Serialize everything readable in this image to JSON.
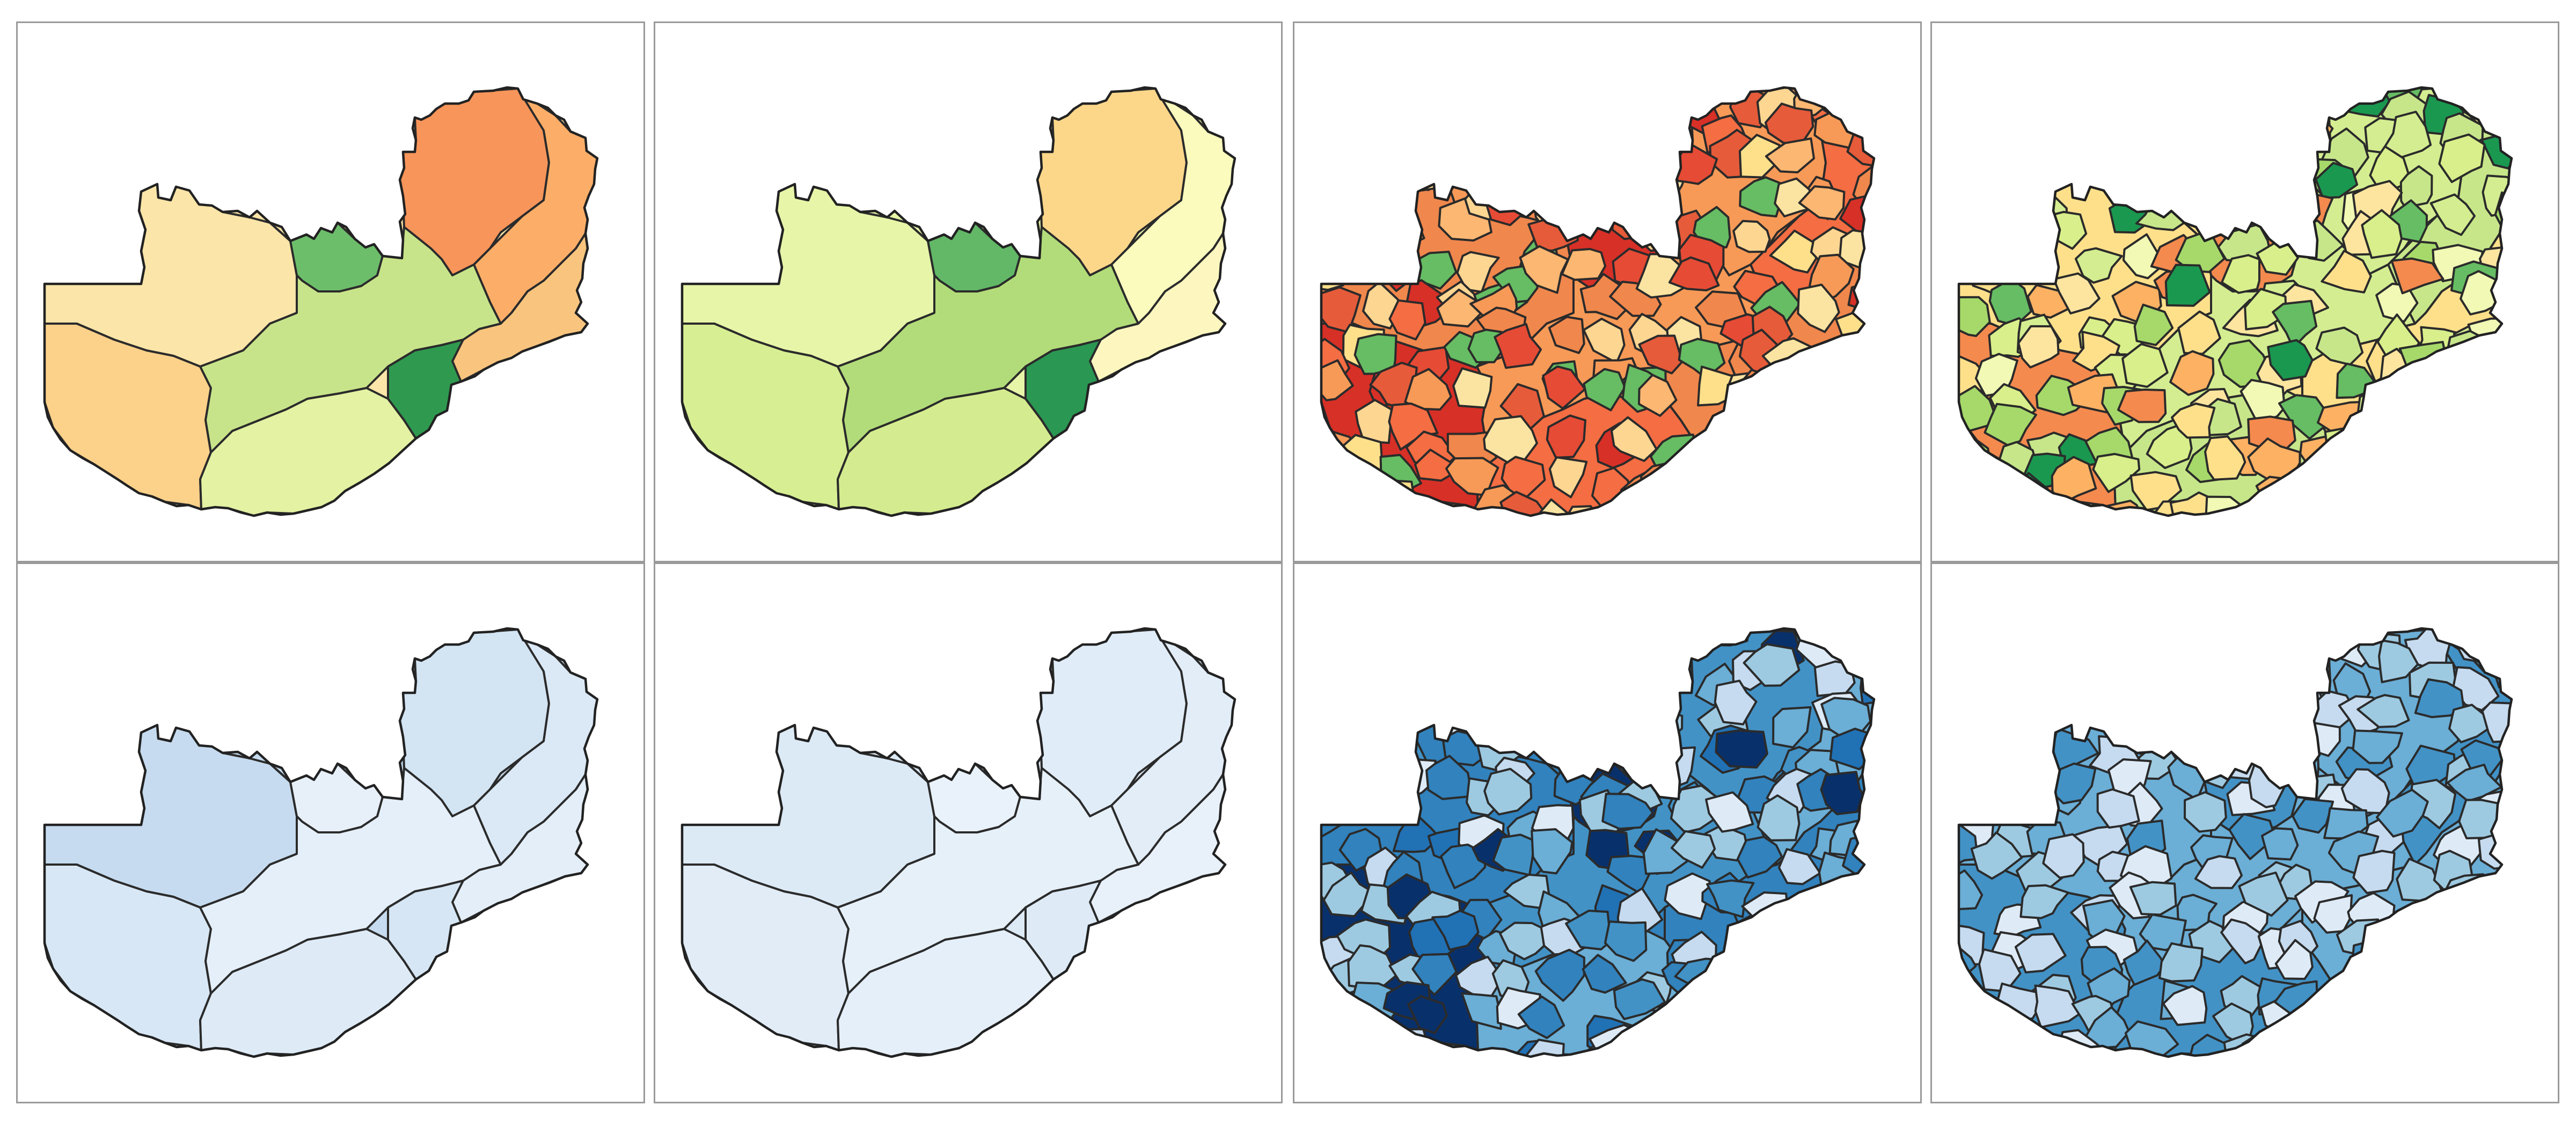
{
  "figure": {
    "description_text": "",
    "rows": [
      {
        "palette_name": "red-yellow-green",
        "panels": [
          {
            "level": "province",
            "fills": [
              "#fbe5a8",
              "#fcd18a",
              "#f8955a",
              "#fcae68",
              "#f9c57e",
              "#6dbe6b",
              "#c8e48a",
              "#e3f2a3",
              "#2f9a4f"
            ]
          },
          {
            "level": "province",
            "fills": [
              "#e6f5a8",
              "#d7ee93",
              "#fcd78a",
              "#fbfbbe",
              "#fdf7bf",
              "#62b867",
              "#b2dc79",
              "#d4ec8f",
              "#2a9752"
            ]
          },
          {
            "level": "district",
            "fills": [
              "#f0874c",
              "#e65b3a",
              "#fcb772",
              "#d73027",
              "#fdd692",
              "#fdd692",
              "#f79a57",
              "#66bd63",
              "#fee08b",
              "#f46d43",
              "#e64b35",
              "#fbe4a1"
            ]
          },
          {
            "level": "district",
            "fills": [
              "#fee08b",
              "#d9ef8b",
              "#fdb163",
              "#f48a4e",
              "#fde5a0",
              "#a6d96a",
              "#d4ed91",
              "#1a9850",
              "#66bd63",
              "#c7e68a",
              "#f1f9b5",
              "#d9ef8b"
            ]
          }
        ]
      },
      {
        "palette_name": "blues",
        "panels": [
          {
            "level": "province",
            "fills": [
              "#c6dbef",
              "#d8e7f5",
              "#d3e4f3",
              "#dbe9f6",
              "#e3eef8",
              "#e7f0f9",
              "#e4eff9",
              "#deebf7",
              "#d6e6f4"
            ]
          },
          {
            "level": "province",
            "fills": [
              "#dceaf6",
              "#e1ecf7",
              "#e0ecf7",
              "#e2edf8",
              "#e8f1fa",
              "#e9f2fa",
              "#e6f0f9",
              "#e5eff9",
              "#deebf7"
            ]
          },
          {
            "level": "district",
            "fills": [
              "#3182bd",
              "#6baed6",
              "#9ecae1",
              "#08306b",
              "#2171b5",
              "#c6dbef",
              "#4292c6",
              "#deebf7",
              "#9ecae1",
              "#6baed6",
              "#3182bd",
              "#c6dbef"
            ]
          },
          {
            "level": "district",
            "fills": [
              "#6baed6",
              "#9ecae1",
              "#c6dbef",
              "#4292c6",
              "#deebf7",
              "#9ecae1",
              "#6baed6",
              "#c6dbef",
              "#9ecae1",
              "#4292c6",
              "#deebf7",
              "#9ecae1"
            ]
          }
        ]
      }
    ]
  }
}
